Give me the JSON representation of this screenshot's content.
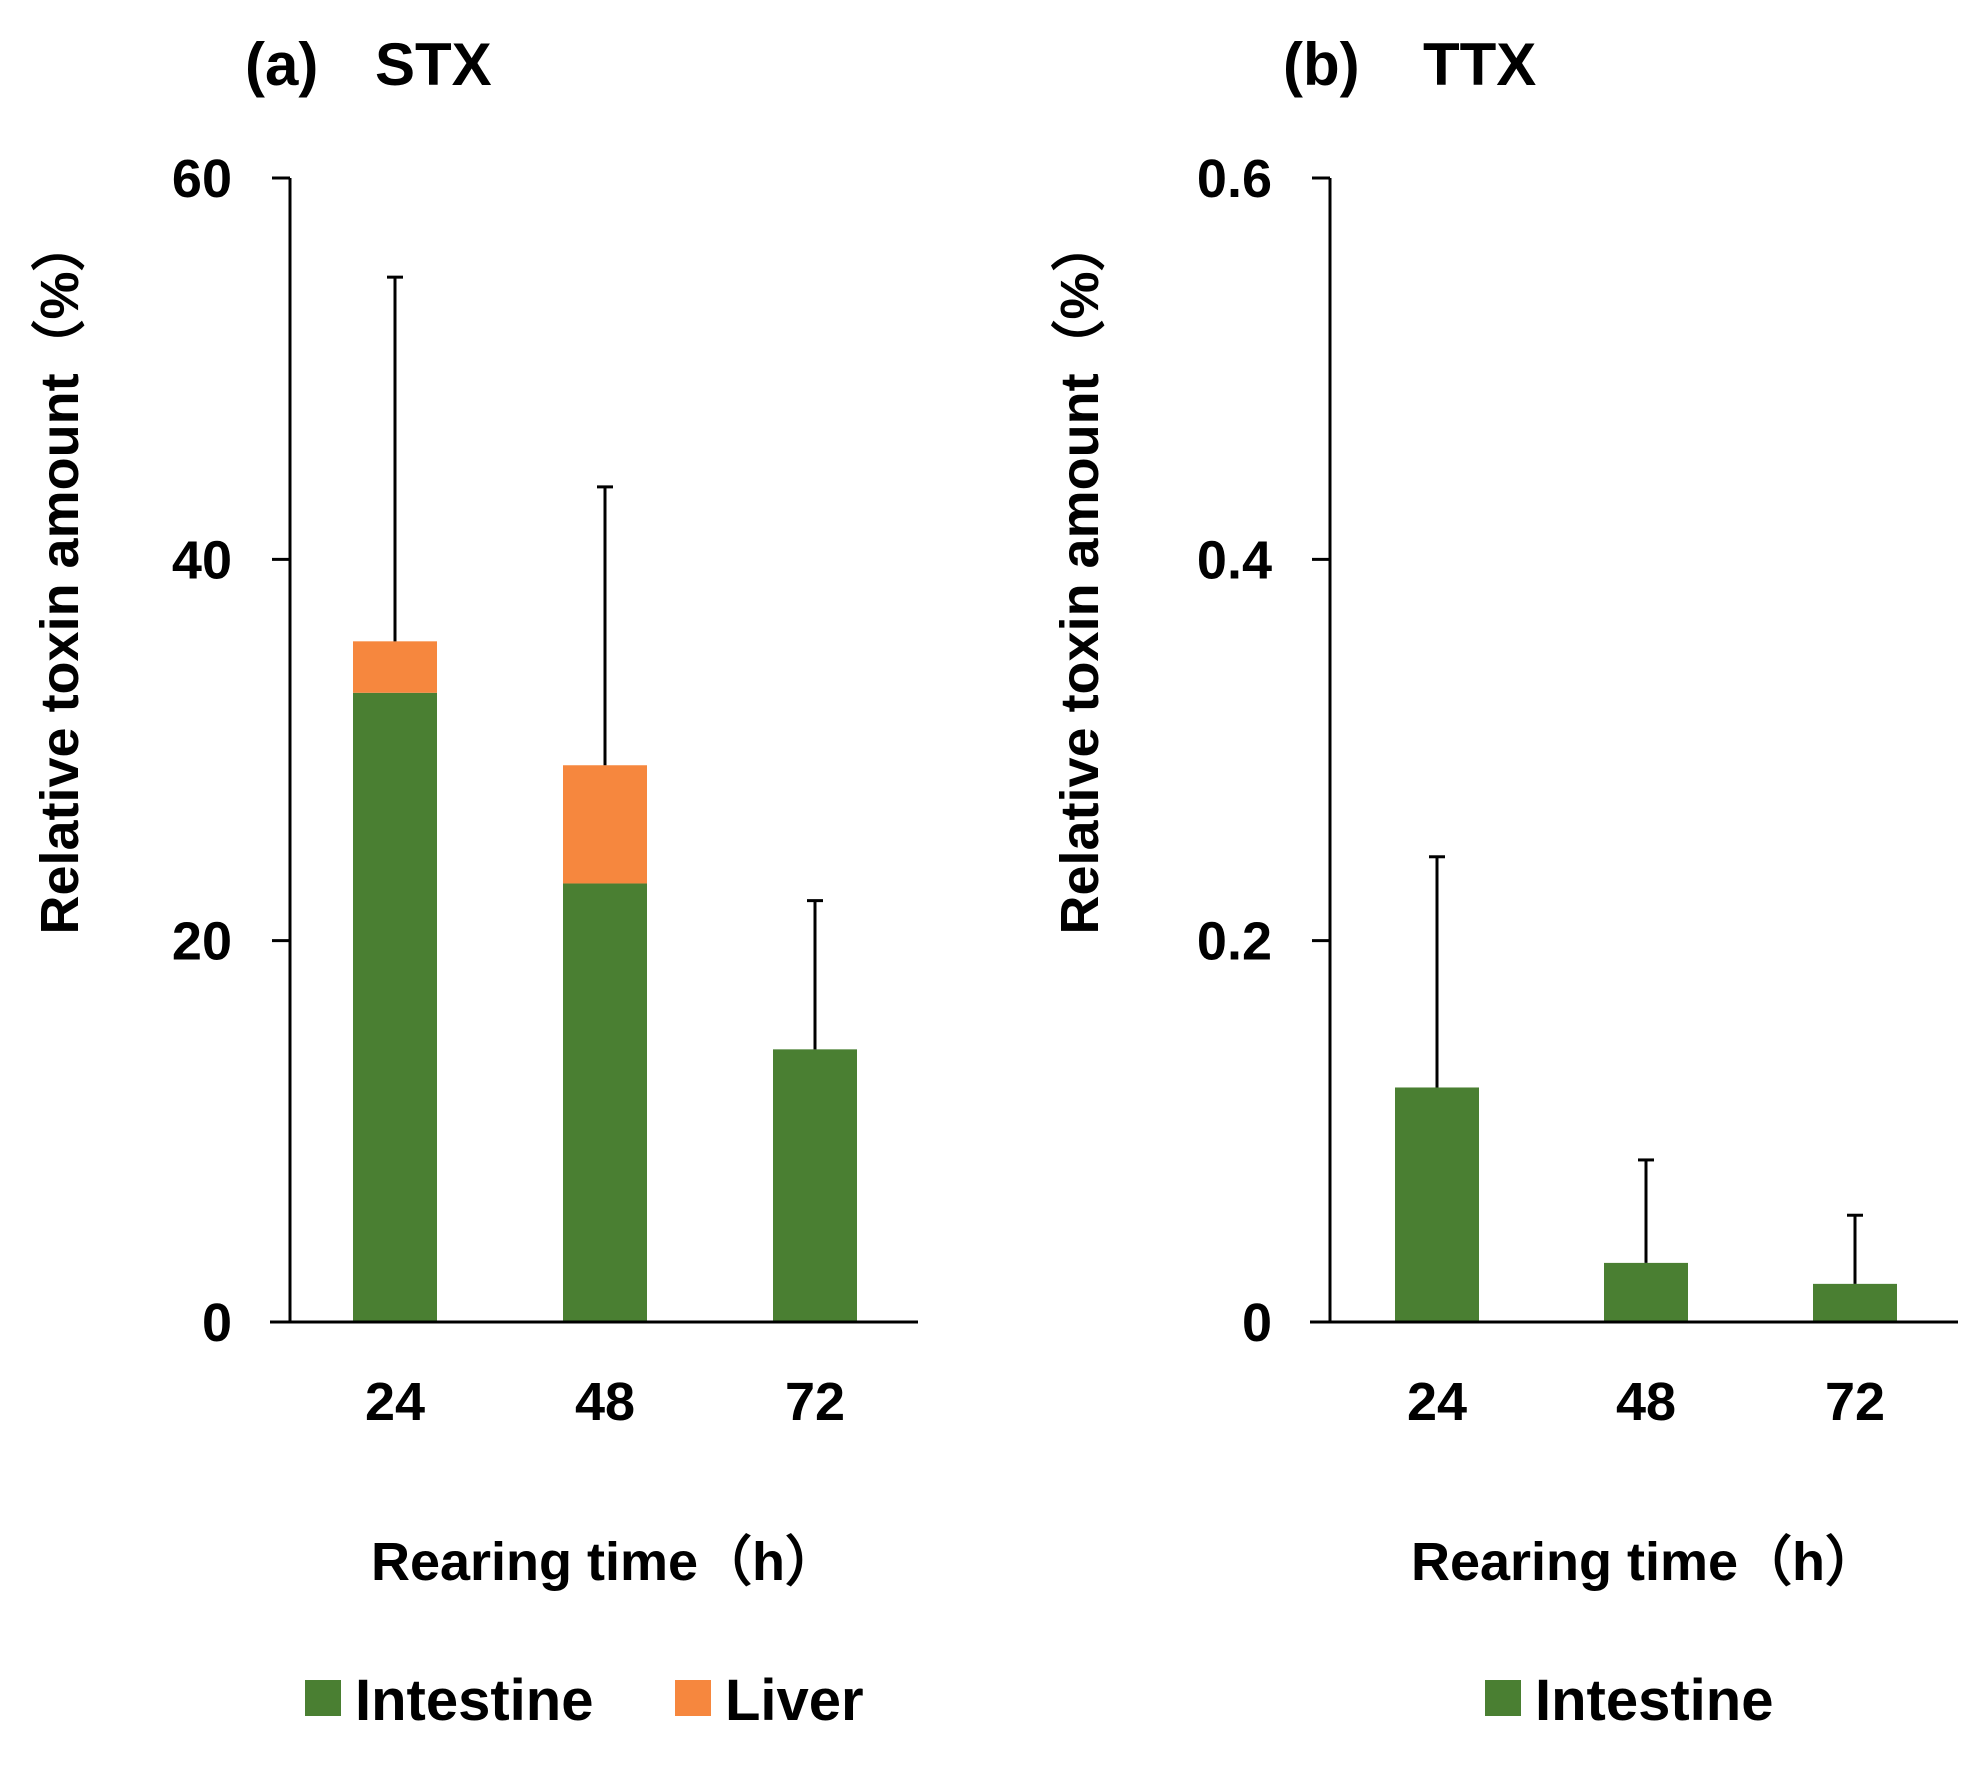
{
  "chart_data": [
    {
      "type": "bar",
      "stacked": true,
      "panel_label": "(a)",
      "title": "STX",
      "categories": [
        "24",
        "48",
        "72"
      ],
      "series": [
        {
          "name": "Intestine",
          "color": "#4a7f32",
          "values": [
            33,
            23,
            14.3
          ]
        },
        {
          "name": "Liver",
          "color": "#f6873e",
          "values": [
            2.7,
            6.2,
            0
          ]
        }
      ],
      "error_bar_tops": [
        54.8,
        43.8,
        22.1
      ],
      "xlabel": "Rearing time（h）",
      "ylabel": "Relative toxin amount（%）",
      "ylim": [
        0,
        60
      ],
      "yticks": [
        "0",
        "20",
        "40",
        "60"
      ],
      "legend": [
        "Intestine",
        "Liver"
      ],
      "legend_position": "bottom"
    },
    {
      "type": "bar",
      "stacked": false,
      "panel_label": "(b)",
      "title": "TTX",
      "categories": [
        "24",
        "48",
        "72"
      ],
      "series": [
        {
          "name": "Intestine",
          "color": "#4a7f32",
          "values": [
            0.123,
            0.031,
            0.02
          ]
        }
      ],
      "error_bar_tops": [
        0.244,
        0.085,
        0.056
      ],
      "xlabel": "Rearing time（h）",
      "ylabel": "Relative toxin amount（%）",
      "ylim": [
        0,
        0.6
      ],
      "yticks": [
        "0",
        "0.2",
        "0.4",
        "0.6"
      ],
      "legend": [
        "Intestine"
      ],
      "legend_position": "bottom"
    }
  ]
}
